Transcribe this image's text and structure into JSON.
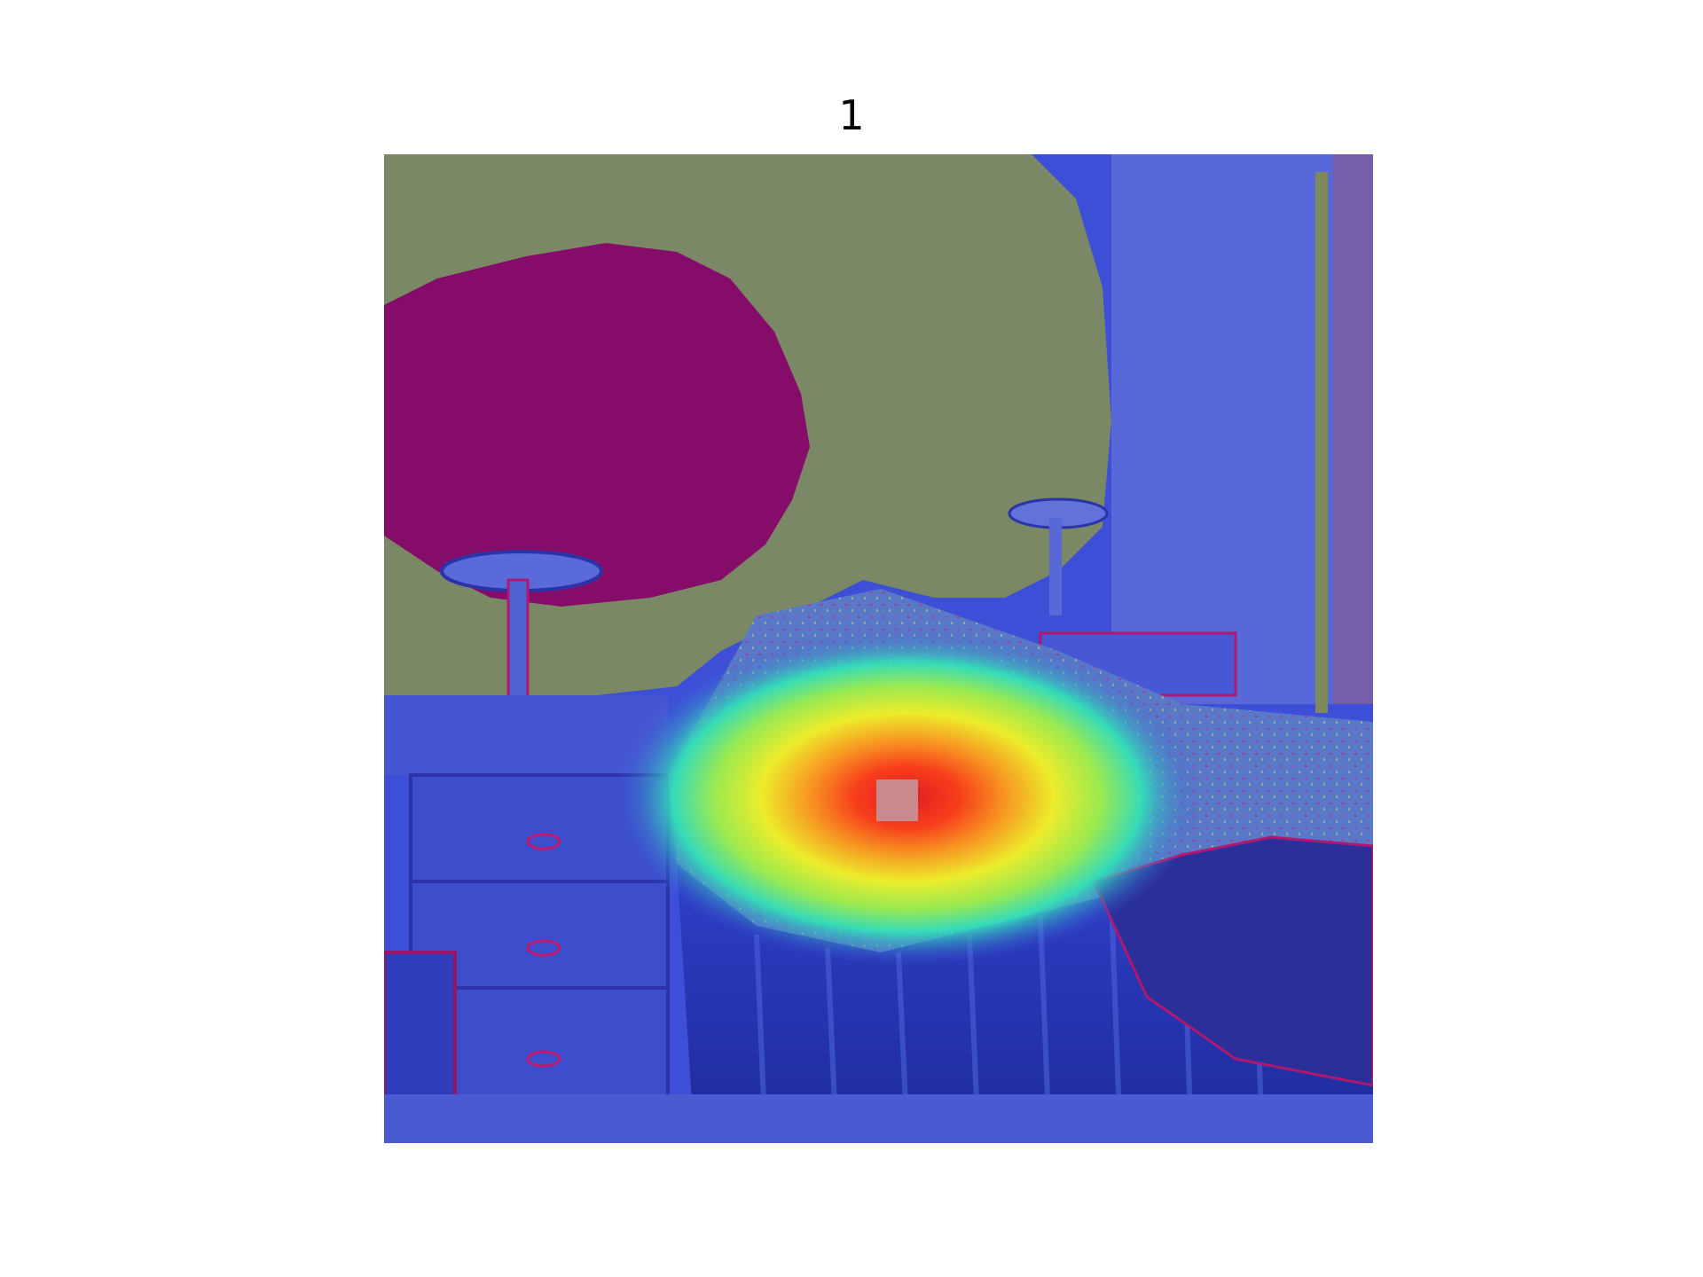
{
  "figure": {
    "title": "1"
  },
  "overlay": {
    "description_colormap": "jet",
    "peak_marker_color": "#c98a8e",
    "wall_tint": "#7c8a62",
    "dark_region_tint": "#8a0f6a",
    "base_tint": "#3c4fd6"
  }
}
